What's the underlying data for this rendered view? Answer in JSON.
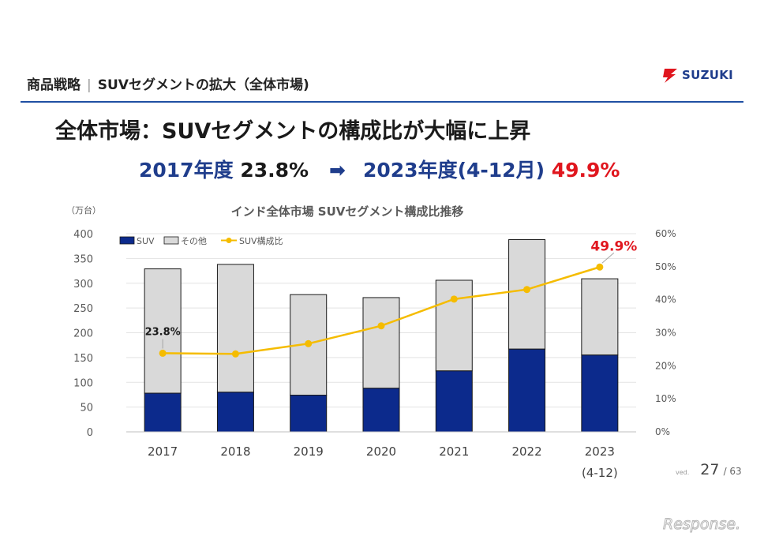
{
  "header": {
    "section": "商品戦略",
    "separator": "|",
    "title": "SUVセグメントの拡大（全体市場)"
  },
  "logo": {
    "text": "SUZUKI"
  },
  "headline": "全体市場：SUVセグメントの構成比が大幅に上昇",
  "sub_headline": {
    "from_label": "2017年度",
    "from_value": "23.8%",
    "arrow": "➡",
    "to_label": "2023年度(4-12月)",
    "to_value": "49.9%"
  },
  "page": {
    "prefix": "ved.",
    "current": "27",
    "total": "/ 63"
  },
  "watermark": "Response.",
  "colors": {
    "suv": "#0c2a8c",
    "other": "#d9d9d9",
    "ratio": "#f5bc00",
    "accent_red": "#e0161e",
    "header_blue": "#1f3d8c"
  },
  "chart_data": {
    "type": "bar",
    "title": "インド全体市場 SUVセグメント構成比推移",
    "y_unit_label": "（万台）",
    "categories": [
      "2017",
      "2018",
      "2019",
      "2020",
      "2021",
      "2022",
      "2023\n(4-12)"
    ],
    "category_lines": [
      [
        "2017"
      ],
      [
        "2018"
      ],
      [
        "2019"
      ],
      [
        "2020"
      ],
      [
        "2021"
      ],
      [
        "2022"
      ],
      [
        "2023",
        "(4-12)"
      ]
    ],
    "series": [
      {
        "name": "SUV",
        "kind": "stacked_bar",
        "values": [
          78,
          80,
          74,
          88,
          123,
          167,
          155
        ]
      },
      {
        "name": "その他",
        "kind": "stacked_bar",
        "values": [
          251,
          258,
          203,
          183,
          183,
          221,
          154
        ]
      },
      {
        "name": "SUV構成比",
        "kind": "line",
        "axis": "right",
        "values": [
          23.8,
          23.6,
          26.7,
          32.1,
          40.2,
          43.1,
          49.9
        ]
      }
    ],
    "ylim": [
      0,
      400
    ],
    "y_ticks": [
      "0",
      "50",
      "100",
      "150",
      "200",
      "250",
      "300",
      "350",
      "400"
    ],
    "y2lim": [
      0,
      60
    ],
    "y2_ticks": [
      "0%",
      "10%",
      "20%",
      "30%",
      "40%",
      "50%",
      "60%"
    ],
    "annotations": [
      {
        "index": 0,
        "text": "23.8%"
      },
      {
        "index": 6,
        "text": "49.9%"
      }
    ],
    "legend_position": "top-left",
    "grid": true
  }
}
